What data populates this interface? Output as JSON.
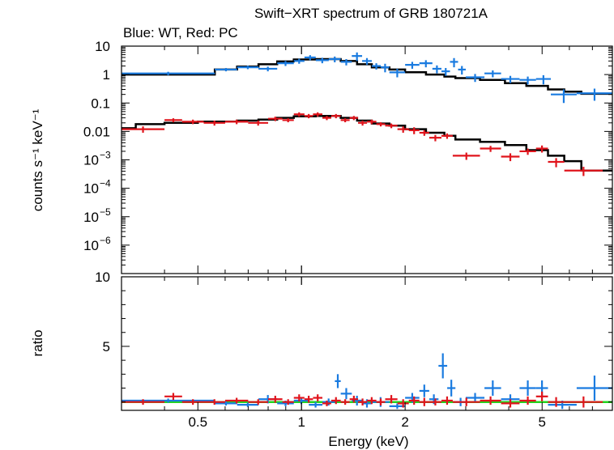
{
  "title": "Swift−XRT spectrum of GRB 180721A",
  "subtitle": "Blue: WT, Red: PC",
  "colors": {
    "wt": "#1a7be0",
    "pc": "#e0141c",
    "model": "#000000",
    "unity": "#22d41e",
    "frame": "#000000"
  },
  "chart_data": [
    {
      "type": "scatter",
      "panel": "spectrum",
      "title": "Swift−XRT spectrum of GRB 180721A",
      "ylabel": "counts s⁻¹ keV⁻¹",
      "xlabel": "",
      "xscale": "log",
      "xlim": [
        0.3,
        8.0
      ],
      "yscale": "log",
      "ylim": [
        1e-07,
        10
      ],
      "yticks": [
        {
          "value": 10,
          "label": "10"
        },
        {
          "value": 1,
          "label": "1"
        },
        {
          "value": 0.1,
          "label": "0.1"
        },
        {
          "value": 0.01,
          "label": "0.01"
        },
        {
          "value": 0.001,
          "base": "10",
          "exp": "−3"
        },
        {
          "value": 0.0001,
          "base": "10",
          "exp": "−4"
        },
        {
          "value": 1e-05,
          "base": "10",
          "exp": "−5"
        },
        {
          "value": 1e-06,
          "base": "10",
          "exp": "−6"
        }
      ],
      "series": [
        {
          "name": "WT",
          "color": "#1a7be0",
          "points": [
            [
              0.3,
              0.56,
              1.1,
              0.15
            ],
            [
              0.56,
              0.65,
              1.5,
              0.2
            ],
            [
              0.65,
              0.75,
              1.8,
              0.25
            ],
            [
              0.75,
              0.85,
              1.6,
              0.3
            ],
            [
              0.85,
              0.95,
              2.5,
              0.5
            ],
            [
              0.95,
              1.02,
              3.0,
              0.6
            ],
            [
              1.02,
              1.1,
              4.0,
              0.8
            ],
            [
              1.1,
              1.2,
              3.2,
              0.7
            ],
            [
              1.2,
              1.3,
              3.5,
              0.8
            ],
            [
              1.3,
              1.4,
              2.8,
              0.7
            ],
            [
              1.4,
              1.5,
              4.5,
              1.5
            ],
            [
              1.5,
              1.6,
              3.0,
              0.8
            ],
            [
              1.6,
              1.7,
              2.0,
              0.5
            ],
            [
              1.7,
              1.8,
              1.8,
              0.6
            ],
            [
              1.8,
              2.0,
              1.2,
              0.4
            ],
            [
              2.0,
              2.2,
              2.2,
              0.6
            ],
            [
              2.2,
              2.4,
              2.5,
              0.7
            ],
            [
              2.4,
              2.55,
              1.6,
              0.5
            ],
            [
              2.55,
              2.7,
              1.3,
              0.4
            ],
            [
              2.7,
              2.85,
              2.8,
              1.0
            ],
            [
              2.85,
              3.0,
              1.5,
              0.5
            ],
            [
              3.0,
              3.4,
              0.8,
              0.25
            ],
            [
              3.4,
              3.8,
              1.1,
              0.3
            ],
            [
              3.8,
              4.3,
              0.7,
              0.2
            ],
            [
              4.3,
              4.8,
              0.65,
              0.2
            ],
            [
              4.8,
              5.3,
              0.7,
              0.25
            ],
            [
              5.3,
              6.3,
              0.2,
              0.1
            ],
            [
              6.3,
              8.0,
              0.22,
              0.1
            ]
          ]
        },
        {
          "name": "PC",
          "color": "#e0141c",
          "points": [
            [
              0.3,
              0.4,
              0.012,
              0.003
            ],
            [
              0.4,
              0.45,
              0.025,
              0.004
            ],
            [
              0.45,
              0.52,
              0.022,
              0.004
            ],
            [
              0.52,
              0.6,
              0.02,
              0.004
            ],
            [
              0.6,
              0.7,
              0.022,
              0.004
            ],
            [
              0.7,
              0.8,
              0.02,
              0.004
            ],
            [
              0.8,
              0.88,
              0.028,
              0.005
            ],
            [
              0.88,
              0.95,
              0.025,
              0.004
            ],
            [
              0.95,
              1.02,
              0.04,
              0.007
            ],
            [
              1.02,
              1.08,
              0.035,
              0.006
            ],
            [
              1.08,
              1.15,
              0.04,
              0.007
            ],
            [
              1.15,
              1.22,
              0.03,
              0.005
            ],
            [
              1.22,
              1.3,
              0.035,
              0.006
            ],
            [
              1.3,
              1.38,
              0.025,
              0.004
            ],
            [
              1.38,
              1.46,
              0.03,
              0.005
            ],
            [
              1.46,
              1.55,
              0.02,
              0.004
            ],
            [
              1.55,
              1.65,
              0.022,
              0.004
            ],
            [
              1.65,
              1.75,
              0.018,
              0.003
            ],
            [
              1.75,
              1.9,
              0.016,
              0.003
            ],
            [
              1.9,
              2.05,
              0.012,
              0.003
            ],
            [
              2.05,
              2.2,
              0.011,
              0.003
            ],
            [
              2.2,
              2.35,
              0.009,
              0.002
            ],
            [
              2.35,
              2.55,
              0.006,
              0.0015
            ],
            [
              2.55,
              2.75,
              0.007,
              0.0015
            ],
            [
              2.75,
              3.3,
              0.0014,
              0.0004
            ],
            [
              3.3,
              3.8,
              0.0025,
              0.0006
            ],
            [
              3.8,
              4.3,
              0.0013,
              0.0004
            ],
            [
              4.3,
              4.8,
              0.002,
              0.0005
            ],
            [
              4.8,
              5.2,
              0.0025,
              0.0007
            ],
            [
              5.2,
              5.8,
              0.00085,
              0.0003
            ],
            [
              5.8,
              7.5,
              0.00042,
              0.00015
            ]
          ]
        }
      ],
      "model": {
        "name": "model",
        "color": "#000000",
        "steps": [
          [
            0.3,
            0.013,
            1.0
          ],
          [
            0.33,
            0.018,
            1.0
          ],
          [
            0.4,
            0.02,
            1.0
          ],
          [
            0.5,
            0.022,
            1.0
          ],
          [
            0.56,
            0.022,
            1.5
          ],
          [
            0.65,
            0.024,
            1.9
          ],
          [
            0.75,
            0.026,
            2.3
          ],
          [
            0.85,
            0.03,
            2.9
          ],
          [
            0.95,
            0.034,
            3.4
          ],
          [
            1.1,
            0.035,
            3.5
          ],
          [
            1.3,
            0.03,
            3.0
          ],
          [
            1.45,
            0.024,
            2.3
          ],
          [
            1.6,
            0.019,
            1.8
          ],
          [
            1.8,
            0.016,
            1.5
          ],
          [
            2.0,
            0.012,
            1.2
          ],
          [
            2.3,
            0.009,
            1.0
          ],
          [
            2.6,
            0.007,
            0.85
          ],
          [
            2.8,
            0.0052,
            0.75
          ],
          [
            3.3,
            0.0043,
            0.65
          ],
          [
            3.9,
            0.0033,
            0.5
          ],
          [
            4.5,
            0.0022,
            0.4
          ],
          [
            5.2,
            0.0014,
            0.3
          ],
          [
            5.8,
            0.0009,
            0.25
          ],
          [
            6.5,
            0.00042,
            0.21
          ],
          [
            8.0,
            0.00042,
            0.21
          ]
        ]
      }
    },
    {
      "type": "scatter",
      "panel": "ratio",
      "xlabel": "Energy (keV)",
      "ylabel": "ratio",
      "xscale": "log",
      "xlim": [
        0.3,
        8.0
      ],
      "ylim": [
        0.4,
        10
      ],
      "yticks": [
        {
          "value": 5,
          "label": "5"
        },
        {
          "value": 10,
          "label": "10"
        }
      ],
      "xticks": [
        {
          "value": 0.5,
          "label": "0.5"
        },
        {
          "value": 1,
          "label": "1"
        },
        {
          "value": 2,
          "label": "2"
        },
        {
          "value": 5,
          "label": "5"
        }
      ],
      "unity_line": 1.0,
      "series": [
        {
          "name": "WT",
          "color": "#1a7be0",
          "points": [
            [
              0.3,
              0.56,
              1.1,
              0.15
            ],
            [
              0.56,
              0.65,
              0.9,
              0.15
            ],
            [
              0.65,
              0.75,
              0.8,
              0.15
            ],
            [
              0.75,
              0.85,
              1.2,
              0.3
            ],
            [
              0.85,
              0.95,
              0.9,
              0.2
            ],
            [
              0.95,
              1.05,
              1.1,
              0.25
            ],
            [
              1.05,
              1.15,
              0.8,
              0.2
            ],
            [
              1.15,
              1.25,
              1.0,
              0.25
            ],
            [
              1.25,
              1.3,
              2.5,
              0.5
            ],
            [
              1.3,
              1.4,
              1.6,
              0.4
            ],
            [
              1.4,
              1.5,
              1.1,
              0.35
            ],
            [
              1.5,
              1.6,
              0.9,
              0.3
            ],
            [
              1.6,
              1.8,
              1.0,
              0.35
            ],
            [
              1.8,
              2.0,
              0.7,
              0.2
            ],
            [
              2.0,
              2.2,
              1.3,
              0.35
            ],
            [
              2.2,
              2.35,
              1.8,
              0.45
            ],
            [
              2.35,
              2.5,
              1.2,
              0.35
            ],
            [
              2.5,
              2.65,
              3.6,
              0.9
            ],
            [
              2.65,
              2.8,
              2.0,
              0.6
            ],
            [
              2.8,
              3.0,
              1.0,
              0.3
            ],
            [
              3.0,
              3.4,
              1.3,
              0.35
            ],
            [
              3.4,
              3.8,
              2.0,
              0.55
            ],
            [
              3.8,
              4.3,
              1.2,
              0.35
            ],
            [
              4.3,
              4.8,
              2.0,
              0.55
            ],
            [
              4.8,
              5.2,
              2.0,
              0.55
            ],
            [
              5.2,
              6.3,
              0.8,
              0.3
            ],
            [
              6.3,
              8.0,
              2.0,
              0.9
            ]
          ]
        },
        {
          "name": "PC",
          "color": "#e0141c",
          "points": [
            [
              0.3,
              0.4,
              1.0,
              0.2
            ],
            [
              0.4,
              0.45,
              1.4,
              0.25
            ],
            [
              0.45,
              0.52,
              1.0,
              0.2
            ],
            [
              0.52,
              0.6,
              1.0,
              0.2
            ],
            [
              0.6,
              0.7,
              1.1,
              0.2
            ],
            [
              0.7,
              0.8,
              1.0,
              0.2
            ],
            [
              0.8,
              0.88,
              1.2,
              0.25
            ],
            [
              0.88,
              0.95,
              1.0,
              0.2
            ],
            [
              0.95,
              1.02,
              1.3,
              0.25
            ],
            [
              1.02,
              1.08,
              1.2,
              0.25
            ],
            [
              1.08,
              1.15,
              1.3,
              0.25
            ],
            [
              1.15,
              1.22,
              0.9,
              0.2
            ],
            [
              1.22,
              1.3,
              1.1,
              0.25
            ],
            [
              1.3,
              1.38,
              1.0,
              0.2
            ],
            [
              1.38,
              1.46,
              1.2,
              0.25
            ],
            [
              1.46,
              1.55,
              1.0,
              0.25
            ],
            [
              1.55,
              1.65,
              1.1,
              0.25
            ],
            [
              1.65,
              1.75,
              1.0,
              0.25
            ],
            [
              1.75,
              1.9,
              1.2,
              0.3
            ],
            [
              1.9,
              2.05,
              0.9,
              0.3
            ],
            [
              2.05,
              2.2,
              1.1,
              0.3
            ],
            [
              2.2,
              2.35,
              1.0,
              0.3
            ],
            [
              2.35,
              2.55,
              1.0,
              0.25
            ],
            [
              2.55,
              2.75,
              1.1,
              0.3
            ],
            [
              2.75,
              3.3,
              1.0,
              0.3
            ],
            [
              3.3,
              3.8,
              1.1,
              0.3
            ],
            [
              3.8,
              4.3,
              0.9,
              0.3
            ],
            [
              4.3,
              4.8,
              1.1,
              0.3
            ],
            [
              4.8,
              5.2,
              1.4,
              0.35
            ],
            [
              5.2,
              5.8,
              1.0,
              0.35
            ],
            [
              5.8,
              7.5,
              1.0,
              0.4
            ]
          ]
        }
      ]
    }
  ]
}
